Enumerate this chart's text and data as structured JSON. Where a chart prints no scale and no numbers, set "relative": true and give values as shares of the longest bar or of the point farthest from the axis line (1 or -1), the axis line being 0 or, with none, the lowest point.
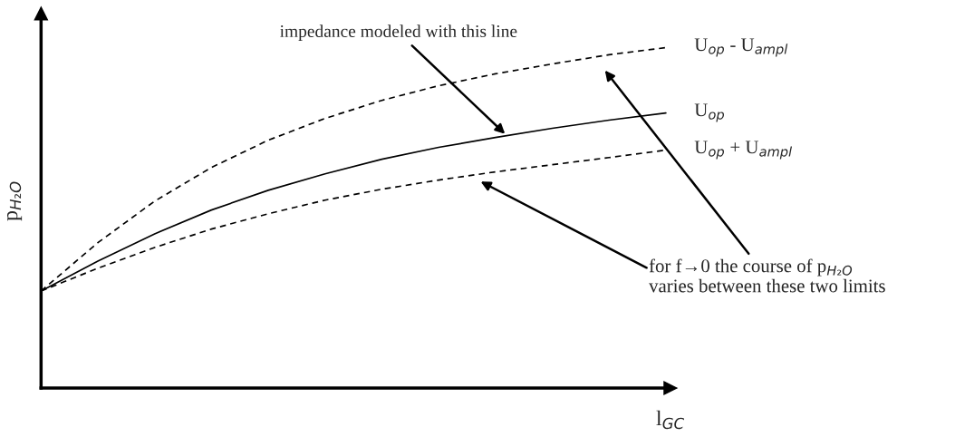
{
  "chart_data": {
    "type": "line",
    "relative": true,
    "marker": "none",
    "legend": false,
    "xlabel": "l$_{GC}$",
    "ylabel": "p$_{H₂O}$",
    "categories": [
      null,
      null,
      null,
      null,
      null,
      null,
      null,
      null,
      null,
      null,
      null,
      null
    ],
    "series": [
      {
        "name": "U$_{op}$ - U$_{ampl}$",
        "color": "#000000",
        "line_style": "dashed",
        "values": [
          0.285,
          0.427,
          0.549,
          0.648,
          0.728,
          0.792,
          0.845,
          0.888,
          0.923,
          0.952,
          0.979,
          1.0
        ]
      },
      {
        "name": "U$_{op}$",
        "color": "#000000",
        "line_style": "solid",
        "values": [
          0.285,
          0.373,
          0.453,
          0.523,
          0.581,
          0.629,
          0.672,
          0.707,
          0.736,
          0.763,
          0.787,
          0.808
        ]
      },
      {
        "name": "U$_{op}$ + U$_{ampl}$",
        "color": "#000000",
        "line_style": "dashed",
        "values": [
          0.285,
          0.352,
          0.413,
          0.467,
          0.512,
          0.552,
          0.584,
          0.611,
          0.635,
          0.656,
          0.677,
          0.699
        ]
      }
    ],
    "annotations": [
      "impedance modeled with this line",
      "for f→0 the course of p$_{H₂O}$\nvaries between these two limits"
    ]
  }
}
